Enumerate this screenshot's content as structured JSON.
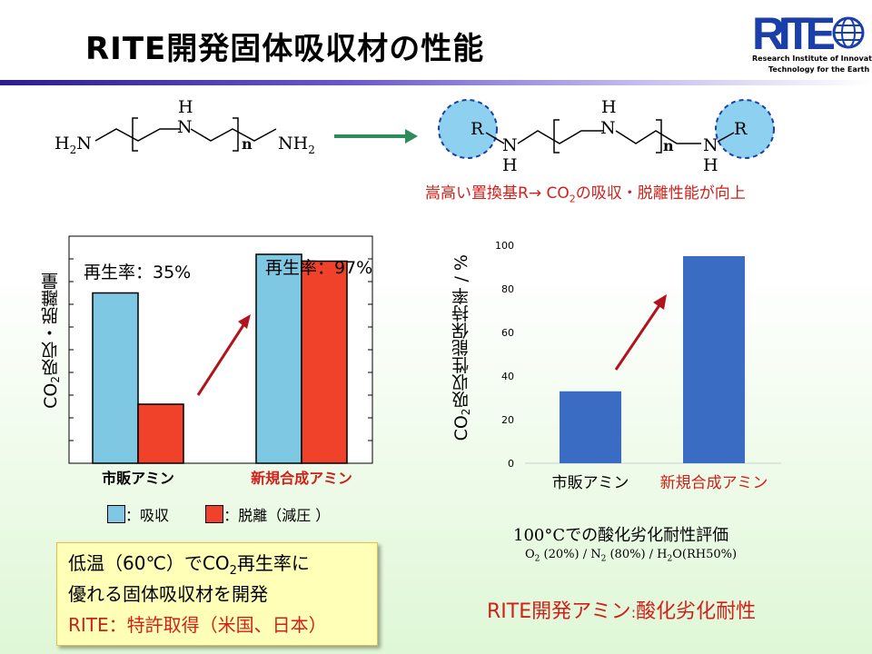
{
  "slide": {
    "title": "RITE開発固体吸収材の性能",
    "logo": {
      "text": "RITE",
      "sub_line1": "Research Institute of Innovative",
      "sub_line2": "Technology for the Earth"
    },
    "formula_left": {
      "h": "H",
      "n": "N",
      "h2n": "H",
      "h2n_sub": "2",
      "h2n_n": "N",
      "repeat_n": "n",
      "nh2": "NH",
      "nh2_sub": "2"
    },
    "formula_right": {
      "r": "R",
      "n": "N",
      "h": "H",
      "repeat_n": "n"
    },
    "formula_note": {
      "part1": "嵩高い置換基R",
      "arrow": "→",
      "part2": " CO",
      "sub": "2",
      "part3": "の吸収・脱離性能が向上"
    },
    "summary_box": {
      "line1_a": "低温（60℃）でCO",
      "line1_sub": "2",
      "line1_b": "再生率に",
      "line2": "優れる固体吸収材を開発",
      "line3": "RITE：特許取得（米国、日本）"
    },
    "bottom_right": {
      "a": "RITE開発アミン",
      "colon": ":",
      "b": "酸化劣化耐性"
    },
    "right_caption": {
      "line1_a": "100°C",
      "line1_b": "での酸化劣化耐性評価",
      "line2_a": "O",
      "line2_a_sub": "2",
      "line2_b": " (20%) / N",
      "line2_b_sub": "2",
      "line2_c": " (80%) / H",
      "line2_c_sub": "2",
      "line2_d": "O(RH50%)"
    }
  },
  "chart_data": [
    {
      "type": "bar",
      "ylabel_a": "CO",
      "ylabel_sub": "2",
      "ylabel_b": "吸収・脱離量",
      "categories": [
        "市販アミン",
        "新規合成アミン"
      ],
      "category_colors": [
        "#000000",
        "#d0201a"
      ],
      "series": [
        {
          "name": "：吸収",
          "color": "#7ec8e3",
          "values": [
            0.75,
            0.92
          ]
        },
        {
          "name": "：脱離（減圧 ）",
          "color": "#f0412a",
          "values": [
            0.26,
            0.89
          ]
        }
      ],
      "ylim": [
        0,
        1
      ],
      "annotations": [
        "再生率：35%",
        "再生率：97%"
      ],
      "yticks_shown": false,
      "legend": "bottom"
    },
    {
      "type": "bar",
      "ylabel_a": "CO",
      "ylabel_sub": "2",
      "ylabel_b": "吸収性能保持率 / %",
      "categories": [
        "市販アミン",
        "新規合成アミン"
      ],
      "category_colors": [
        "#000000",
        "#d0201a"
      ],
      "values": [
        33,
        95
      ],
      "color": "#3a6cc4",
      "ylim": [
        0,
        100
      ],
      "yticks": [
        "0",
        "20",
        "40",
        "60",
        "80",
        "100"
      ]
    }
  ],
  "colors": {
    "arrow_green": "#2e8b5a",
    "arrow_red": "#b0141c",
    "circle_fill": "#8dd0ef"
  }
}
